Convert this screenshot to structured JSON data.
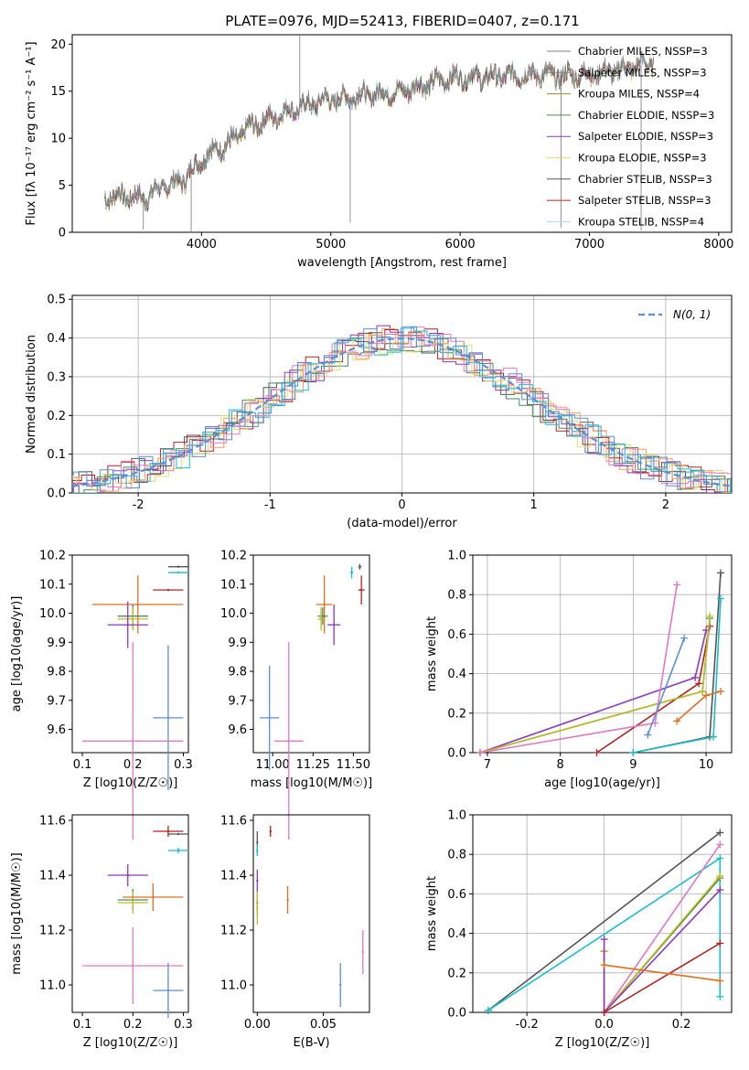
{
  "chart_data": [
    {
      "type": "line",
      "title": "PLATE=0976, MJD=52413, FIBERID=0407, z=0.171",
      "xlabel": "wavelength [Angstrom, rest frame]",
      "ylabel": "Flux [fλ 10⁻¹⁷ erg cm⁻² s⁻¹ A⁻¹]",
      "xlim": [
        3000,
        8100
      ],
      "ylim": [
        0,
        21
      ],
      "xticks": [
        4000,
        5000,
        6000,
        7000,
        8000
      ],
      "yticks": [
        0,
        5,
        10,
        15,
        20
      ],
      "legend_position": "top-right",
      "spectrum_data_range": [
        3250,
        7500
      ],
      "spectrum_shape": {
        "x": [
          3250,
          3400,
          3550,
          3700,
          3850,
          3950,
          4050,
          4150,
          4250,
          4350,
          4500,
          4650,
          4800,
          4950,
          5100,
          5250,
          5400,
          5550,
          5700,
          5850,
          6000,
          6150,
          6300,
          6450,
          6600,
          6750,
          6900,
          7050,
          7200,
          7350,
          7500
        ],
        "y": [
          3.8,
          3.9,
          3.6,
          4.8,
          5.5,
          7.0,
          8.5,
          9.0,
          9.8,
          11.0,
          12.0,
          12.8,
          13.5,
          14.0,
          14.3,
          14.6,
          14.8,
          15.0,
          15.6,
          16.2,
          16.5,
          16.5,
          16.6,
          16.7,
          16.8,
          16.6,
          16.7,
          16.9,
          17.2,
          17.6,
          18.0
        ]
      },
      "series": [
        {
          "name": "Chabrier MILES, N_SSP=3",
          "color": "#7f7f7f"
        },
        {
          "name": "Salpeter MILES, N_SSP=3",
          "color": "#7f7f7f"
        },
        {
          "name": "Kroupa MILES, N_SSP=4",
          "color": "#a08a2a"
        },
        {
          "name": "Chabrier ELODIE, N_SSP=3",
          "color": "#4a8a5c"
        },
        {
          "name": "Salpeter ELODIE, N_SSP=3",
          "color": "#8e3ab8"
        },
        {
          "name": "Kroupa ELODIE, N_SSP=3",
          "color": "#d7e36a"
        },
        {
          "name": "Chabrier STELIB, N_SSP=3",
          "color": "#555555"
        },
        {
          "name": "Salpeter STELIB, N_SSP=3",
          "color": "#b22222"
        },
        {
          "name": "Kroupa STELIB, N_SSP=4",
          "color": "#a4e0ea"
        }
      ]
    },
    {
      "type": "line",
      "xlabel": "(data-model)/error",
      "ylabel": "Normed distribution",
      "xlim": [
        -2.5,
        2.5
      ],
      "ylim": [
        0,
        0.51
      ],
      "xticks": [
        -2,
        -1,
        0,
        1,
        2
      ],
      "yticks": [
        0.0,
        0.1,
        0.2,
        0.3,
        0.4,
        0.5
      ],
      "grid": true,
      "legend_position": "top-right",
      "reference_curve": {
        "name": "N(0, 1)",
        "color": "#5b8fd6",
        "style": "dashed"
      },
      "histogram_colors": [
        "#555555",
        "#b22222",
        "#4a8a5c",
        "#8e3ab8",
        "#d7e36a",
        "#ff9966",
        "#e377c2",
        "#17becf",
        "#5b8fd6"
      ]
    },
    {
      "type": "scatter",
      "xlabel": "Z [log10(Z/Z☉)]",
      "ylabel": "age  [log10(age/yr)]",
      "xlim": [
        0.08,
        0.31
      ],
      "ylim": [
        9.52,
        10.2
      ],
      "xticks": [
        0.1,
        0.2,
        0.3
      ],
      "yticks": [
        9.6,
        9.7,
        9.8,
        9.9,
        10.0,
        10.1,
        10.2
      ],
      "points": [
        {
          "x": 0.29,
          "y": 10.16,
          "xerr": 0.02,
          "yerr": 0.0,
          "color": "#555555"
        },
        {
          "x": 0.29,
          "y": 10.14,
          "xerr": 0.02,
          "yerr": 0.0,
          "color": "#17becf"
        },
        {
          "x": 0.27,
          "y": 10.08,
          "xerr": 0.03,
          "yerr": 0.0,
          "color": "#b22222"
        },
        {
          "x": 0.21,
          "y": 10.03,
          "xerr": 0.09,
          "yerr": 0.1,
          "color": "#e07020"
        },
        {
          "x": 0.2,
          "y": 9.99,
          "xerr": 0.03,
          "yerr": 0.04,
          "color": "#4a8a5c"
        },
        {
          "x": 0.2,
          "y": 9.98,
          "xerr": 0.03,
          "yerr": 0.04,
          "color": "#bcbd22"
        },
        {
          "x": 0.19,
          "y": 9.96,
          "xerr": 0.04,
          "yerr": 0.08,
          "color": "#8e3ab8"
        },
        {
          "x": 0.27,
          "y": 9.64,
          "xerr": 0.03,
          "yerr": 0.25,
          "color": "#5b8fd6"
        },
        {
          "x": 0.2,
          "y": 9.56,
          "xerr": 0.1,
          "yerr": 0.34,
          "color": "#e377c2"
        }
      ]
    },
    {
      "type": "scatter",
      "xlabel": "mass [log10(M/M☉)]",
      "xlim": [
        10.88,
        11.6
      ],
      "ylim": [
        9.52,
        10.2
      ],
      "xticks": [
        11.0,
        11.25,
        11.5
      ],
      "yticks": [
        9.6,
        9.7,
        9.8,
        9.9,
        10.0,
        10.1,
        10.2
      ],
      "points": [
        {
          "x": 11.54,
          "y": 10.16,
          "xerr": 0.01,
          "yerr": 0.01,
          "color": "#555555"
        },
        {
          "x": 11.49,
          "y": 10.14,
          "xerr": 0.01,
          "yerr": 0.02,
          "color": "#17becf"
        },
        {
          "x": 11.55,
          "y": 10.08,
          "xerr": 0.02,
          "yerr": 0.05,
          "color": "#b22222"
        },
        {
          "x": 11.32,
          "y": 10.03,
          "xerr": 0.05,
          "yerr": 0.1,
          "color": "#e07020"
        },
        {
          "x": 11.31,
          "y": 9.99,
          "xerr": 0.03,
          "yerr": 0.03,
          "color": "#4a8a5c"
        },
        {
          "x": 11.3,
          "y": 9.98,
          "xerr": 0.02,
          "yerr": 0.04,
          "color": "#bcbd22"
        },
        {
          "x": 11.38,
          "y": 9.96,
          "xerr": 0.04,
          "yerr": 0.07,
          "color": "#8e3ab8"
        },
        {
          "x": 10.98,
          "y": 9.64,
          "xerr": 0.06,
          "yerr": 0.18,
          "color": "#5b8fd6"
        },
        {
          "x": 11.1,
          "y": 9.56,
          "xerr": 0.09,
          "yerr": 0.34,
          "color": "#e377c2"
        }
      ]
    },
    {
      "type": "line",
      "xlabel": "age  [log10(age/yr)]",
      "ylabel": "mass weight",
      "xlim": [
        6.8,
        10.35
      ],
      "ylim": [
        0,
        1
      ],
      "xticks": [
        7,
        8,
        9,
        10
      ],
      "yticks": [
        0.0,
        0.2,
        0.4,
        0.6,
        0.8,
        1.0
      ],
      "grid": true,
      "series": [
        {
          "color": "#555555",
          "x": [
            9.0,
            10.05,
            10.2
          ],
          "y": [
            0.0,
            0.08,
            0.91
          ]
        },
        {
          "color": "#b22222",
          "x": [
            8.5,
            9.9,
            10.05
          ],
          "y": [
            0.0,
            0.35,
            0.64
          ]
        },
        {
          "color": "#17becf",
          "x": [
            9.0,
            10.1,
            10.2
          ],
          "y": [
            0.0,
            0.08,
            0.78
          ]
        },
        {
          "color": "#8e3ab8",
          "x": [
            6.9,
            9.85,
            10.0
          ],
          "y": [
            0.0,
            0.38,
            0.62
          ]
        },
        {
          "color": "#4a8a5c",
          "x": [
            6.9,
            9.95,
            10.05
          ],
          "y": [
            0.0,
            0.31,
            0.68
          ]
        },
        {
          "color": "#bcbd22",
          "x": [
            6.9,
            9.95,
            10.05
          ],
          "y": [
            0.0,
            0.31,
            0.69
          ]
        },
        {
          "color": "#e377c2",
          "x": [
            6.9,
            9.3,
            9.6
          ],
          "y": [
            0.0,
            0.15,
            0.85
          ]
        },
        {
          "color": "#5b8fd6",
          "x": [
            9.2,
            9.7
          ],
          "y": [
            0.09,
            0.58
          ]
        },
        {
          "color": "#e07020",
          "x": [
            9.6,
            10.0,
            10.2
          ],
          "y": [
            0.16,
            0.29,
            0.31
          ]
        }
      ]
    },
    {
      "type": "scatter",
      "xlabel": "Z [log10(Z/Z☉)]",
      "ylabel": "mass [log10(M/M☉)]",
      "xlim": [
        0.08,
        0.31
      ],
      "ylim": [
        10.9,
        11.62
      ],
      "xticks": [
        0.1,
        0.2,
        0.3
      ],
      "yticks": [
        11.0,
        11.2,
        11.4,
        11.6
      ],
      "points": [
        {
          "x": 0.29,
          "y": 11.55,
          "xerr": 0.02,
          "yerr": 0.0,
          "color": "#555555"
        },
        {
          "x": 0.27,
          "y": 11.56,
          "xerr": 0.03,
          "yerr": 0.02,
          "color": "#b22222"
        },
        {
          "x": 0.29,
          "y": 11.49,
          "xerr": 0.02,
          "yerr": 0.01,
          "color": "#17becf"
        },
        {
          "x": 0.19,
          "y": 11.4,
          "xerr": 0.04,
          "yerr": 0.04,
          "color": "#8e3ab8"
        },
        {
          "x": 0.2,
          "y": 11.31,
          "xerr": 0.03,
          "yerr": 0.04,
          "color": "#4a8a5c"
        },
        {
          "x": 0.2,
          "y": 11.3,
          "xerr": 0.03,
          "yerr": 0.04,
          "color": "#bcbd22"
        },
        {
          "x": 0.24,
          "y": 11.32,
          "xerr": 0.06,
          "yerr": 0.05,
          "color": "#e07020"
        },
        {
          "x": 0.2,
          "y": 11.07,
          "xerr": 0.1,
          "yerr": 0.14,
          "color": "#e377c2"
        },
        {
          "x": 0.27,
          "y": 10.98,
          "xerr": 0.03,
          "yerr": 0.1,
          "color": "#5b8fd6"
        }
      ]
    },
    {
      "type": "scatter",
      "xlabel": "E(B-V)",
      "xlim": [
        -0.003,
        0.085
      ],
      "ylim": [
        10.9,
        11.62
      ],
      "xticks": [
        0.0,
        0.05
      ],
      "yticks": [
        11.0,
        11.2,
        11.4,
        11.6
      ],
      "points": [
        {
          "x": 0.0,
          "y": 11.52,
          "yerr": 0.04,
          "color": "#555555"
        },
        {
          "x": 0.01,
          "y": 11.56,
          "yerr": 0.02,
          "color": "#b22222"
        },
        {
          "x": 0.0,
          "y": 11.49,
          "yerr": 0.02,
          "color": "#17becf"
        },
        {
          "x": 0.0,
          "y": 11.38,
          "yerr": 0.04,
          "color": "#8e3ab8"
        },
        {
          "x": 0.0,
          "y": 11.3,
          "yerr": 0.04,
          "color": "#4a8a5c"
        },
        {
          "x": 0.0,
          "y": 11.28,
          "yerr": 0.06,
          "color": "#bcbd22"
        },
        {
          "x": 0.023,
          "y": 11.31,
          "yerr": 0.05,
          "color": "#e07020"
        },
        {
          "x": 0.08,
          "y": 11.12,
          "yerr": 0.08,
          "color": "#e377c2"
        },
        {
          "x": 0.063,
          "y": 11.0,
          "yerr": 0.08,
          "color": "#5b8fd6"
        }
      ]
    },
    {
      "type": "line",
      "xlabel": "Z [log10(Z/Z☉)]",
      "ylabel": "mass weight",
      "xlim": [
        -0.34,
        0.33
      ],
      "ylim": [
        0,
        1
      ],
      "xticks": [
        -0.2,
        0.0,
        0.2
      ],
      "yticks": [
        0.0,
        0.2,
        0.4,
        0.6,
        0.8,
        1.0
      ],
      "grid": true,
      "series": [
        {
          "color": "#555555",
          "x": [
            -0.3,
            0.3
          ],
          "y": [
            0.01,
            0.91
          ]
        },
        {
          "color": "#17becf",
          "x": [
            -0.3,
            0.3,
            0.3
          ],
          "y": [
            0.01,
            0.78,
            0.08
          ]
        },
        {
          "color": "#e377c2",
          "x": [
            0.0,
            0.3
          ],
          "y": [
            0.0,
            0.85
          ]
        },
        {
          "color": "#4a8a5c",
          "x": [
            0.0,
            0.0,
            0.3
          ],
          "y": [
            0.31,
            0.0,
            0.68
          ]
        },
        {
          "color": "#bcbd22",
          "x": [
            0.0,
            0.0,
            0.3
          ],
          "y": [
            0.31,
            0.0,
            0.69
          ]
        },
        {
          "color": "#8e3ab8",
          "x": [
            0.0,
            0.0,
            0.3
          ],
          "y": [
            0.37,
            0.0,
            0.62
          ]
        },
        {
          "color": "#b22222",
          "x": [
            0.0,
            0.3
          ],
          "y": [
            0.0,
            0.35
          ]
        },
        {
          "color": "#e07020",
          "x": [
            0.0,
            0.3
          ],
          "y": [
            0.24,
            0.16
          ]
        }
      ]
    }
  ]
}
